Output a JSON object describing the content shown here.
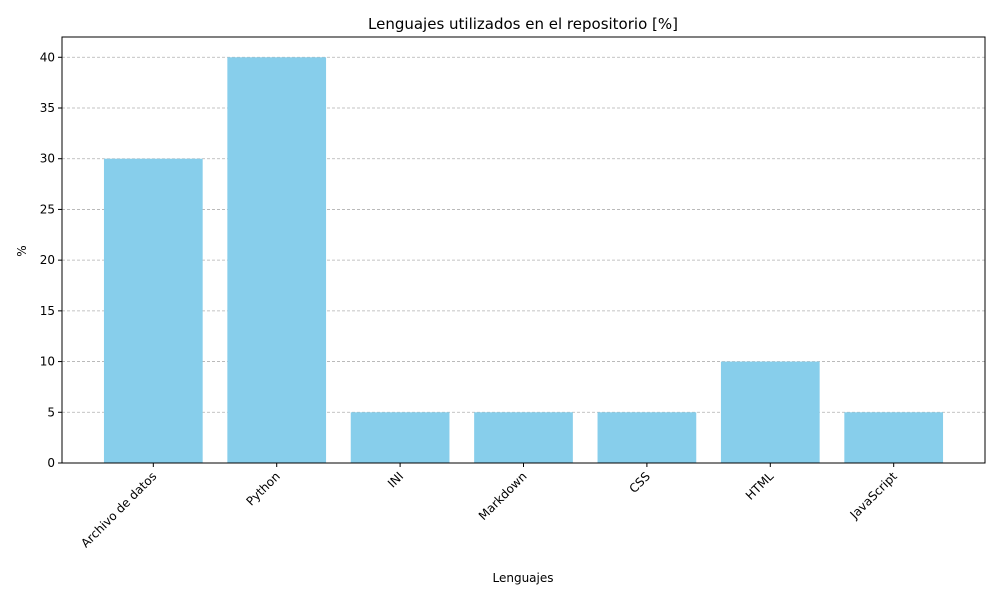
{
  "chart_data": {
    "type": "bar",
    "title": "Lenguajes utilizados en el repositorio [%]",
    "xlabel": "Lenguajes",
    "ylabel": "%",
    "categories": [
      "Archivo de datos",
      "Python",
      "INI",
      "Markdown",
      "CSS",
      "HTML",
      "JavaScript"
    ],
    "values": [
      30,
      40,
      5,
      5,
      5,
      10,
      5
    ],
    "ylim": [
      0,
      42
    ],
    "yticks": [
      0,
      5,
      10,
      15,
      20,
      25,
      30,
      35,
      40
    ],
    "ytick_labels": [
      "0",
      "5",
      "10",
      "15",
      "20",
      "25",
      "30",
      "35",
      "40"
    ],
    "grid": "y-dashed",
    "bar_color": "#87CEEB",
    "grid_color": "#b0b0b0",
    "xtick_rotation_deg": 45
  }
}
